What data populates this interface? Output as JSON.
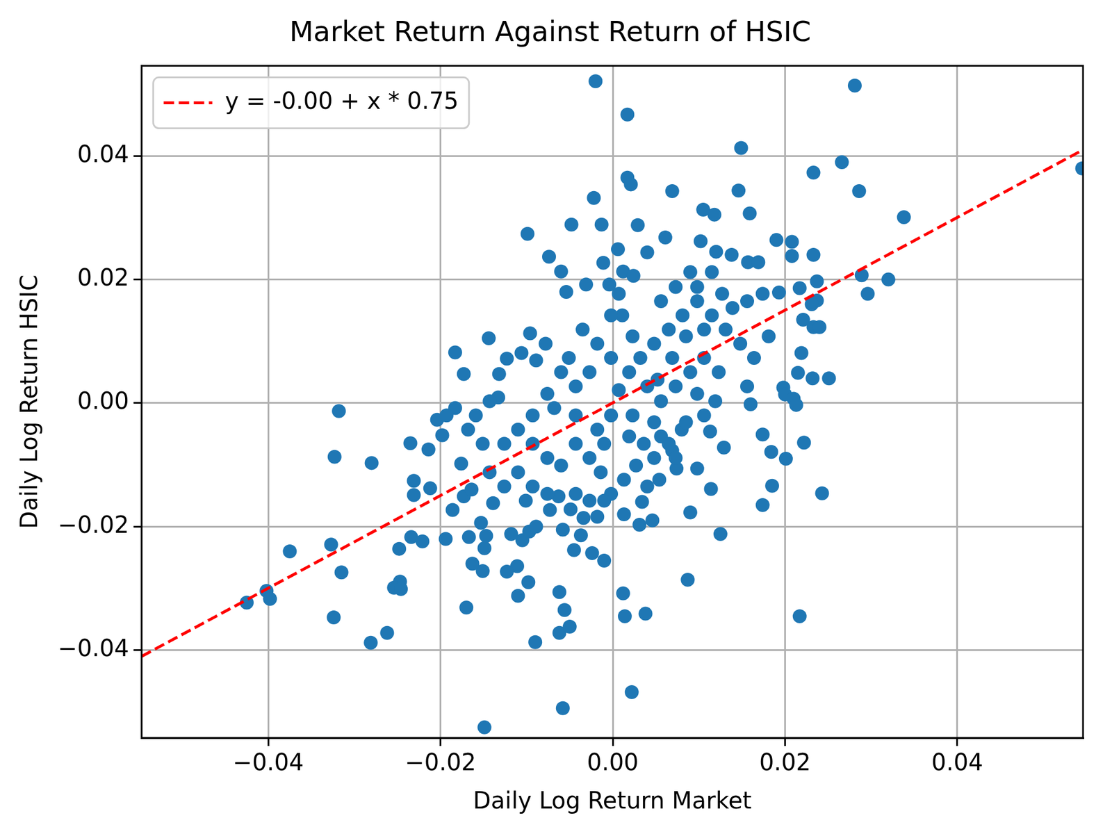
{
  "chart_data": {
    "type": "scatter",
    "title": "Market Return Against Return of HSIC",
    "x_label": "Daily Log Return Market",
    "y_label": "Daily Log Return HSIC",
    "xlim": [
      -0.0547,
      0.0546
    ],
    "ylim": [
      -0.0542,
      0.0546
    ],
    "xticks": [
      {
        "value": -0.04,
        "label": "−0.04"
      },
      {
        "value": -0.02,
        "label": "−0.02"
      },
      {
        "value": 0,
        "label": "0.00"
      },
      {
        "value": 0.02,
        "label": "0.02"
      },
      {
        "value": 0.04,
        "label": "0.04"
      }
    ],
    "yticks": [
      {
        "value": -0.04,
        "label": "−0.04"
      },
      {
        "value": -0.02,
        "label": "−0.02"
      },
      {
        "value": 0,
        "label": "0.00"
      },
      {
        "value": 0.02,
        "label": "0.02"
      },
      {
        "value": 0.04,
        "label": "0.04"
      }
    ],
    "grid": true,
    "legend": "upper left",
    "series": [
      {
        "type": "scatter",
        "color": "#1f77b4",
        "marker": "circle",
        "x": [
          -0.002,
          0.0281,
          0.0017,
          0.0149,
          0.0545,
          0.0233,
          0.0266,
          0.0017,
          0.0021,
          0.0146,
          0.0286,
          0.0069,
          -0.0022,
          0.0338,
          0.0105,
          0.0118,
          0.0159,
          -0.0048,
          -0.0013,
          0.0029,
          -0.0099,
          0.0061,
          0.0102,
          0.019,
          0.0208,
          0.0006,
          -0.0074,
          0.0233,
          0.0208,
          0.004,
          0.012,
          0.0138,
          0.0157,
          0.0169,
          -0.0011,
          -0.006,
          0.0012,
          0.0024,
          0.0237,
          0.032,
          0.0289,
          0.0296,
          0.0217,
          0.0193,
          0.0174,
          -0.0054,
          -0.0031,
          -0.0004,
          0.0237,
          0.0231,
          0.0221,
          0.0233,
          0.024,
          0.0232,
          0.0251,
          0.0215,
          0.0219,
          0.0198,
          0.02,
          0.021,
          0.0213,
          0.0222,
          0.0201,
          0.0184,
          0.0174,
          0.0185,
          0.0174,
          0.0243,
          0.0217,
          0.0129,
          0.0125,
          0.0114,
          0.0113,
          0.0098,
          0.009,
          0.0087,
          0.0046,
          0.0031,
          0.0012,
          0.0014,
          0.0038,
          0.0022,
          -0.0058,
          -0.0149,
          -0.009,
          -0.0062,
          -0.005,
          -0.0056,
          -0.0062,
          -0.011,
          -0.0098,
          -0.0111,
          -0.0123,
          -0.017,
          -0.0151,
          -0.0163,
          -0.0149,
          -0.0147,
          -0.0167,
          -0.0153,
          -0.0037,
          -0.0024,
          -0.0045,
          -0.001,
          -0.0058,
          -0.0281,
          -0.0262,
          -0.0247,
          -0.0254,
          -0.0246,
          -0.0324,
          -0.0315,
          -0.0327,
          -0.0248,
          -0.0234,
          -0.0221,
          -0.0194,
          -0.0402,
          -0.0398,
          -0.0425,
          -0.0375,
          -0.028,
          -0.0323,
          -0.0318,
          -0.0235,
          -0.0231,
          -0.0231,
          -0.0212,
          -0.0214,
          -0.0204,
          -0.0198,
          -0.0183,
          -0.0173,
          -0.0144,
          -0.0132,
          -0.0123,
          -0.0106,
          -0.0096,
          -0.0078,
          -0.0089,
          -0.0133,
          -0.0183,
          -0.0186,
          -0.0173,
          -0.0164,
          -0.0176,
          -0.0139,
          -0.0118,
          -0.0105,
          -0.0097,
          -0.0089,
          -0.0073,
          -0.0063,
          -0.0049,
          -0.0034,
          -0.0018,
          0.0013,
          0.0034,
          0.0054,
          0.0074,
          0.0069,
          0.0056,
          0.008,
          0.0048,
          0.0019,
          0.0027,
          0.0013,
          -0.0002,
          -0.0014,
          -0.0027,
          -0.0043,
          -0.006,
          -0.0076,
          -0.0093,
          -0.011,
          -0.0126,
          -0.011,
          -0.0093,
          -0.0126,
          -0.0143,
          -0.0093,
          -0.0068,
          -0.0043,
          -0.0018,
          -0.001,
          -0.0002,
          0.0007,
          0.0019,
          0.0032,
          0.0048,
          0.0065,
          0.0081,
          0.0098,
          0.0115,
          0.0131,
          0.0148,
          0.0164,
          0.0181,
          0.0106,
          0.009,
          0.0073,
          0.0056,
          0.004,
          0.0023,
          0.0011,
          -0.0002,
          -0.0018,
          -0.0035,
          -0.0027,
          -0.0043,
          -0.006,
          -0.0076,
          -0.0051,
          0.0073,
          0.009,
          0.0115,
          0.0056,
          0.0139,
          0.0156,
          0.0123,
          0.0156,
          0.016,
          0.0106,
          0.0085,
          0.0119,
          0.0098,
          0.0065,
          0.004,
          0.0073,
          -0.0143,
          -0.0159,
          -0.0168,
          -0.0151,
          -0.0193,
          -0.0101,
          -0.0076,
          -0.0043,
          -0.0027,
          -0.001,
          0.0048,
          0.0023,
          0.0036,
          0.0052,
          0.0069,
          0.0085,
          0.0106,
          0.0127,
          0.0098,
          -0.0002,
          0.0007
        ],
        "values": [
          0.0521,
          0.0514,
          0.0467,
          0.0413,
          0.038,
          0.0373,
          0.039,
          0.0365,
          0.0354,
          0.0344,
          0.0343,
          0.0343,
          0.0332,
          0.0301,
          0.0313,
          0.0305,
          0.0307,
          0.0289,
          0.0289,
          0.0288,
          0.0274,
          0.0268,
          0.0262,
          0.0264,
          0.0261,
          0.0249,
          0.0237,
          0.024,
          0.0238,
          0.0244,
          0.0245,
          0.024,
          0.0228,
          0.0228,
          0.0227,
          0.0213,
          0.0213,
          0.0206,
          0.0197,
          0.02,
          0.0207,
          0.0177,
          0.0186,
          0.0179,
          0.0177,
          0.018,
          0.0192,
          0.0192,
          0.0166,
          0.016,
          0.0135,
          0.0123,
          0.0123,
          0.004,
          0.004,
          0.0049,
          0.0081,
          0.0025,
          0.0014,
          0.0007,
          -0.0003,
          -0.0064,
          -0.009,
          -0.0079,
          -0.0051,
          -0.0134,
          -0.0165,
          -0.0146,
          -0.0345,
          -0.0072,
          -0.0212,
          -0.0139,
          -0.0046,
          -0.0106,
          -0.0177,
          -0.0286,
          -0.019,
          -0.0197,
          -0.0308,
          -0.0345,
          -0.0341,
          -0.0468,
          -0.0494,
          -0.0525,
          -0.0387,
          -0.0372,
          -0.0362,
          -0.0335,
          -0.0306,
          -0.0312,
          -0.029,
          -0.0264,
          -0.0273,
          -0.0331,
          -0.0272,
          -0.026,
          -0.0235,
          -0.0215,
          -0.0217,
          -0.0194,
          -0.0214,
          -0.0243,
          -0.0238,
          -0.0255,
          -0.0205,
          -0.0388,
          -0.0372,
          -0.0289,
          -0.0299,
          -0.0301,
          -0.0347,
          -0.0274,
          -0.0229,
          -0.0236,
          -0.0217,
          -0.0224,
          -0.022,
          -0.0304,
          -0.0317,
          -0.0323,
          -0.024,
          -0.0097,
          -0.0087,
          -0.0013,
          -0.0065,
          -0.0149,
          -0.0126,
          -0.0138,
          -0.0075,
          -0.0027,
          -0.0052,
          0.0082,
          0.0047,
          0.0105,
          0.0047,
          0.0072,
          0.0081,
          0.0113,
          0.0096,
          0.0069,
          0.0009,
          -0.0008,
          -0.0173,
          -0.0151,
          -0.014,
          -0.0098,
          -0.0162,
          -0.0212,
          -0.0222,
          -0.0208,
          -0.02,
          -0.0173,
          -0.0151,
          -0.0172,
          -0.0186,
          -0.0184,
          -0.018,
          -0.016,
          -0.0124,
          -0.0106,
          -0.0077,
          -0.0054,
          -0.0043,
          -0.0031,
          -0.0054,
          -0.0101,
          -0.0124,
          -0.0147,
          -0.0112,
          -0.0089,
          -0.0066,
          -0.0101,
          -0.0089,
          -0.0066,
          -0.0043,
          -0.0066,
          -0.0112,
          -0.0135,
          -0.0135,
          -0.0112,
          -0.002,
          -0.0008,
          -0.002,
          -0.0043,
          -0.0066,
          -0.002,
          0.0021,
          0.005,
          0.0073,
          0.0096,
          0.0119,
          0.0142,
          0.0165,
          0.0142,
          0.0119,
          0.0096,
          0.0073,
          0.0108,
          0.0073,
          0.005,
          0.0027,
          0.0003,
          0.0027,
          0.0108,
          0.0142,
          0.0073,
          0.0096,
          0.0119,
          0.005,
          0.0027,
          0.005,
          0.0015,
          0.0073,
          0.0188,
          0.0212,
          0.0212,
          0.0165,
          0.0154,
          0.0165,
          0.005,
          0.0027,
          -0.0002,
          -0.002,
          -0.0031,
          0.0003,
          0.0015,
          -0.0066,
          -0.0135,
          -0.0089,
          0.0003,
          -0.002,
          -0.0043,
          -0.0066,
          -0.002,
          -0.0158,
          -0.0147,
          -0.0147,
          -0.0158,
          -0.0158,
          -0.0089,
          -0.002,
          -0.0066,
          0.0038,
          0.0073,
          0.0108,
          0.0119,
          0.0177,
          0.0188,
          0.0142,
          0.0177
        ]
      },
      {
        "name": "y = -0.00 + x * 0.75",
        "type": "line",
        "color": "#ff0000",
        "line_style": "dashed",
        "x": [
          -0.0547,
          0.0546
        ],
        "values": [
          -0.041,
          0.041
        ]
      }
    ]
  }
}
